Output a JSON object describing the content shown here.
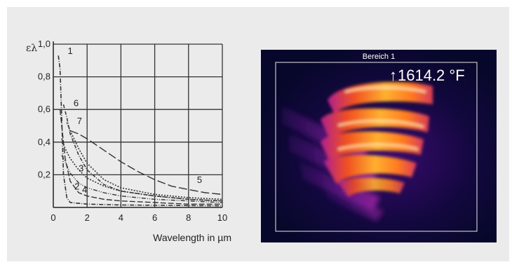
{
  "chart_data": {
    "type": "line",
    "ylabel": "ελ",
    "xlabel": "Wavelength in µm",
    "xlim": [
      0,
      10
    ],
    "ylim": [
      0,
      1.0
    ],
    "x_ticks": [
      "0",
      "2",
      "4",
      "6",
      "8",
      "10"
    ],
    "y_ticks": [
      "0,2",
      "0,4",
      "0,6",
      "0,8",
      "1,0"
    ],
    "grid": true,
    "series": [
      {
        "name": "1",
        "x": [
          0.3,
          0.4,
          0.5,
          0.6,
          0.8,
          1.0,
          2,
          4,
          10
        ],
        "y": [
          0.93,
          0.85,
          0.55,
          0.2,
          0.06,
          0.03,
          0.02,
          0.015,
          0.01
        ]
      },
      {
        "name": "2",
        "x": [
          0.4,
          0.5,
          0.7,
          1.0,
          1.5,
          2,
          3,
          4,
          6,
          8,
          10
        ],
        "y": [
          0.6,
          0.5,
          0.3,
          0.16,
          0.09,
          0.07,
          0.05,
          0.04,
          0.03,
          0.02,
          0.02
        ]
      },
      {
        "name": "3",
        "x": [
          0.5,
          0.7,
          1.0,
          1.5,
          2,
          3,
          4,
          6,
          8,
          10
        ],
        "y": [
          0.42,
          0.36,
          0.3,
          0.23,
          0.18,
          0.13,
          0.1,
          0.07,
          0.05,
          0.04
        ]
      },
      {
        "name": "4",
        "x": [
          0.5,
          0.7,
          1.0,
          1.5,
          2,
          3,
          4,
          6,
          8,
          10
        ],
        "y": [
          0.32,
          0.28,
          0.21,
          0.15,
          0.12,
          0.09,
          0.07,
          0.05,
          0.04,
          0.03
        ]
      },
      {
        "name": "5",
        "x": [
          1.0,
          1.5,
          2,
          3,
          4,
          5,
          6,
          7,
          8,
          9,
          10
        ],
        "y": [
          0.47,
          0.45,
          0.42,
          0.35,
          0.28,
          0.22,
          0.17,
          0.13,
          0.11,
          0.09,
          0.08
        ]
      },
      {
        "name": "6",
        "x": [
          0.6,
          0.8,
          1.0,
          1.5,
          2,
          3,
          4,
          6,
          8,
          10
        ],
        "y": [
          0.63,
          0.55,
          0.45,
          0.32,
          0.23,
          0.14,
          0.1,
          0.07,
          0.05,
          0.04
        ]
      },
      {
        "name": "7",
        "x": [
          0.8,
          1.0,
          1.5,
          2,
          3,
          4,
          6,
          8,
          10
        ],
        "y": [
          0.52,
          0.47,
          0.36,
          0.27,
          0.17,
          0.12,
          0.08,
          0.06,
          0.05
        ]
      }
    ]
  },
  "thermal_image": {
    "region_label": "Bereich 1",
    "temperature_readout": "1614.2 °F",
    "arrow_glyph": "↑"
  }
}
